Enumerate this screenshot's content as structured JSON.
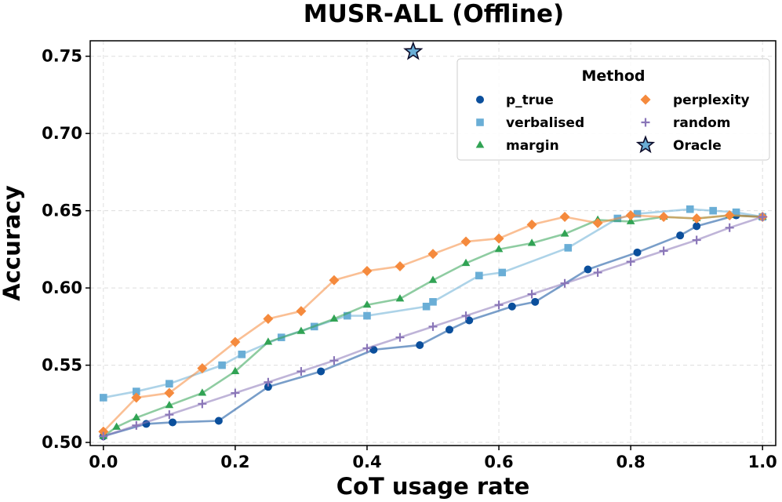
{
  "chart_data": {
    "type": "line",
    "title": "MUSR-ALL (Offline)",
    "xlabel": "CoT usage rate",
    "ylabel": "Accuracy",
    "xlim": [
      -0.02,
      1.02
    ],
    "ylim": [
      0.498,
      0.76
    ],
    "xticks": [
      0.0,
      0.2,
      0.4,
      0.6,
      0.8,
      1.0
    ],
    "xtick_labels": [
      "0.0",
      "0.2",
      "0.4",
      "0.6",
      "0.8",
      "1.0"
    ],
    "yticks": [
      0.5,
      0.55,
      0.6,
      0.65,
      0.7,
      0.75
    ],
    "ytick_labels": [
      "0.50",
      "0.55",
      "0.60",
      "0.65",
      "0.70",
      "0.75"
    ],
    "grid": true,
    "legend": {
      "title": "Method",
      "position": "top-right",
      "columns": 2
    },
    "series": [
      {
        "name": "p_true",
        "marker": "circle",
        "color": "#0b4f9c",
        "x": [
          0.0,
          0.065,
          0.105,
          0.175,
          0.25,
          0.33,
          0.41,
          0.48,
          0.525,
          0.555,
          0.62,
          0.655,
          0.735,
          0.81,
          0.875,
          0.9,
          0.96,
          1.0
        ],
        "y": [
          0.504,
          0.512,
          0.513,
          0.514,
          0.536,
          0.546,
          0.56,
          0.563,
          0.573,
          0.579,
          0.588,
          0.591,
          0.612,
          0.623,
          0.634,
          0.64,
          0.647,
          0.646
        ]
      },
      {
        "name": "verbalised",
        "marker": "square",
        "color": "#6aaed6",
        "x": [
          0.0,
          0.05,
          0.1,
          0.18,
          0.21,
          0.27,
          0.32,
          0.37,
          0.4,
          0.49,
          0.5,
          0.57,
          0.605,
          0.705,
          0.78,
          0.81,
          0.89,
          0.925,
          0.96,
          1.0
        ],
        "y": [
          0.529,
          0.533,
          0.538,
          0.55,
          0.557,
          0.568,
          0.575,
          0.582,
          0.582,
          0.588,
          0.591,
          0.608,
          0.61,
          0.626,
          0.645,
          0.648,
          0.651,
          0.65,
          0.649,
          0.646
        ]
      },
      {
        "name": "margin",
        "marker": "triangle",
        "color": "#31a354",
        "x": [
          0.0,
          0.02,
          0.05,
          0.1,
          0.15,
          0.2,
          0.25,
          0.3,
          0.35,
          0.4,
          0.45,
          0.5,
          0.55,
          0.6,
          0.65,
          0.7,
          0.75,
          0.8,
          0.85,
          0.9,
          0.95,
          1.0
        ],
        "y": [
          0.504,
          0.51,
          0.516,
          0.524,
          0.532,
          0.546,
          0.565,
          0.572,
          0.58,
          0.589,
          0.593,
          0.605,
          0.616,
          0.625,
          0.629,
          0.635,
          0.644,
          0.643,
          0.646,
          0.645,
          0.647,
          0.646
        ]
      },
      {
        "name": "perplexity",
        "marker": "diamond",
        "color": "#f58a3d",
        "x": [
          0.0,
          0.05,
          0.1,
          0.15,
          0.2,
          0.25,
          0.3,
          0.35,
          0.4,
          0.45,
          0.5,
          0.55,
          0.6,
          0.65,
          0.7,
          0.75,
          0.8,
          0.85,
          0.9,
          0.95,
          1.0
        ],
        "y": [
          0.507,
          0.529,
          0.532,
          0.548,
          0.565,
          0.58,
          0.585,
          0.605,
          0.611,
          0.614,
          0.622,
          0.63,
          0.632,
          0.641,
          0.646,
          0.642,
          0.647,
          0.646,
          0.645,
          0.647,
          0.646
        ]
      },
      {
        "name": "random",
        "marker": "plus",
        "color": "#8a76b8",
        "x": [
          0.0,
          0.05,
          0.1,
          0.15,
          0.2,
          0.25,
          0.3,
          0.35,
          0.4,
          0.45,
          0.5,
          0.55,
          0.6,
          0.65,
          0.7,
          0.75,
          0.8,
          0.85,
          0.9,
          0.95,
          1.0
        ],
        "y": [
          0.504,
          0.511,
          0.518,
          0.525,
          0.532,
          0.539,
          0.546,
          0.553,
          0.561,
          0.568,
          0.575,
          0.582,
          0.589,
          0.596,
          0.603,
          0.61,
          0.617,
          0.624,
          0.631,
          0.639,
          0.646
        ]
      }
    ],
    "oracle": {
      "name": "Oracle",
      "marker": "star",
      "color": "#6aaed6",
      "x": 0.47,
      "y": 0.753
    }
  }
}
